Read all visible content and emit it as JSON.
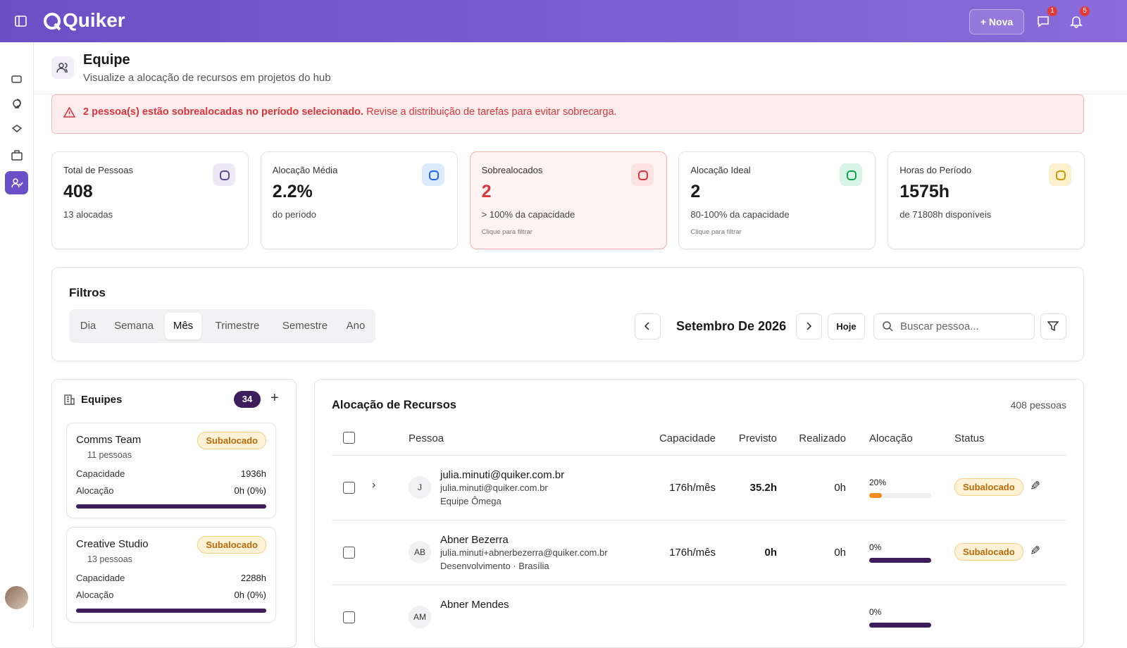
{
  "header": {
    "logo": "Quiker",
    "new_button": "Nova",
    "messages_badge": "1",
    "notifications_badge": "5"
  },
  "page": {
    "title": "Equipe",
    "subtitle": "Visualize a alocação de recursos em projetos do hub"
  },
  "alert": {
    "strong": "2 pessoa(s) estão sobrealocadas no período selecionado.",
    "text": "Revise a distribuição de tarefas para evitar sobrecarga."
  },
  "stats": [
    {
      "label": "Total de Pessoas",
      "value": "408",
      "note": "13 alocadas"
    },
    {
      "label": "Alocação Média",
      "value": "2.2%",
      "note": "do período"
    },
    {
      "label": "Sobrealocados",
      "value": "2",
      "note": "> 100% da capacidade",
      "hint": "Clique para filtrar"
    },
    {
      "label": "Alocação Ideal",
      "value": "2",
      "note": "80-100% da capacidade",
      "hint": "Clique para filtrar"
    },
    {
      "label": "Horas do Período",
      "value": "1575h",
      "note": "de 71808h disponíveis"
    }
  ],
  "filters": {
    "title": "Filtros",
    "periods": [
      "Dia",
      "Semana",
      "Mês",
      "Trimestre",
      "Semestre",
      "Ano"
    ],
    "period_label": "Setembro De 2026",
    "today": "Hoje",
    "search_placeholder": "Buscar pessoa..."
  },
  "teams": {
    "title": "Equipes",
    "count": "34",
    "items": [
      {
        "name": "Comms Team",
        "status": "Subalocado",
        "people": "11 pessoas",
        "capacity_label": "Capacidade",
        "capacity": "1936h",
        "allocation_label": "Alocação",
        "allocation": "0h (0%)"
      },
      {
        "name": "Creative Studio",
        "status": "Subalocado",
        "people": "13 pessoas",
        "capacity_label": "Capacidade",
        "capacity": "2288h",
        "allocation_label": "Alocação",
        "allocation": "0h (0%)"
      }
    ]
  },
  "table": {
    "title": "Alocação de Recursos",
    "count": "408 pessoas",
    "columns": [
      "Pessoa",
      "Capacidade",
      "Previsto",
      "Realizado",
      "Alocação",
      "Status"
    ],
    "rows": [
      {
        "initials": "J",
        "name": "julia.minuti@quiker.com.br",
        "email": "julia.minuti@quiker.com.br",
        "team": "Equipe Ômega",
        "capacity": "176h/mês",
        "planned": "35.2h",
        "actual": "0h",
        "allocation": "20%",
        "status": "Subalocado"
      },
      {
        "initials": "AB",
        "name": "Abner Bezerra",
        "email": "julia.minuti+abnerbezerra@quiker.com.br",
        "team": "Desenvolvimento · Brasília",
        "capacity": "176h/mês",
        "planned": "0h",
        "actual": "0h",
        "allocation": "0%",
        "status": "Subalocado"
      },
      {
        "initials": "AM",
        "name": "Abner Mendes",
        "allocation": "0%"
      }
    ]
  }
}
